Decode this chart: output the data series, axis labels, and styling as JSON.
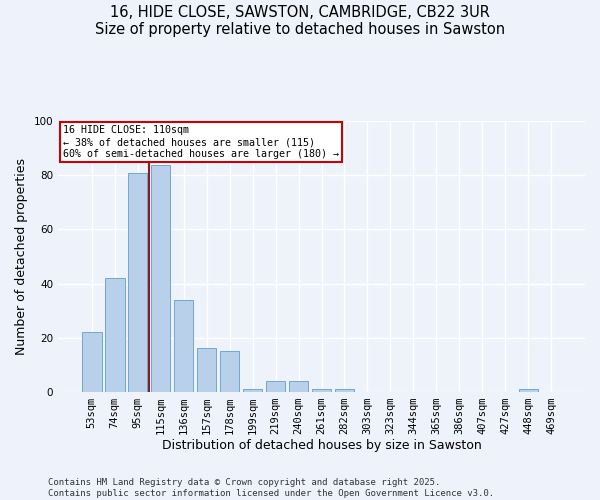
{
  "title_line1": "16, HIDE CLOSE, SAWSTON, CAMBRIDGE, CB22 3UR",
  "title_line2": "Size of property relative to detached houses in Sawston",
  "categories": [
    "53sqm",
    "74sqm",
    "95sqm",
    "115sqm",
    "136sqm",
    "157sqm",
    "178sqm",
    "199sqm",
    "219sqm",
    "240sqm",
    "261sqm",
    "282sqm",
    "303sqm",
    "323sqm",
    "344sqm",
    "365sqm",
    "386sqm",
    "407sqm",
    "427sqm",
    "448sqm",
    "469sqm"
  ],
  "values": [
    22,
    42,
    81,
    84,
    34,
    16,
    15,
    1,
    4,
    4,
    1,
    1,
    0,
    0,
    0,
    0,
    0,
    0,
    0,
    1,
    0
  ],
  "bar_color": "#b8d0ea",
  "bar_edge_color": "#6fa8d4",
  "vline_x_pos": 2.5,
  "vline_color": "#8b1a1a",
  "xlabel": "Distribution of detached houses by size in Sawston",
  "ylabel": "Number of detached properties",
  "ylim": [
    0,
    100
  ],
  "yticks": [
    0,
    20,
    40,
    60,
    80,
    100
  ],
  "annotation_title": "16 HIDE CLOSE: 110sqm",
  "annotation_line1": "← 38% of detached houses are smaller (115)",
  "annotation_line2": "60% of semi-detached houses are larger (180) →",
  "annotation_box_color": "#ffffff",
  "annotation_box_edge": "#cc0000",
  "footnote1": "Contains HM Land Registry data © Crown copyright and database right 2025.",
  "footnote2": "Contains public sector information licensed under the Open Government Licence v3.0.",
  "bg_color": "#eef2fb",
  "grid_color": "#ffffff",
  "title_fontsize": 10.5,
  "axis_label_fontsize": 9,
  "tick_fontsize": 7.5,
  "footnote_fontsize": 6.5
}
